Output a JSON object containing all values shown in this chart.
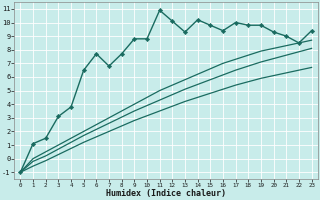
{
  "xlabel": "Humidex (Indice chaleur)",
  "ylabel": "",
  "bg_color": "#c8ecea",
  "grid_color": "#ffffff",
  "line_color": "#1a6b60",
  "xlim": [
    -0.5,
    23.5
  ],
  "ylim": [
    -1.5,
    11.5
  ],
  "xticks": [
    0,
    1,
    2,
    3,
    4,
    5,
    6,
    7,
    8,
    9,
    10,
    11,
    12,
    13,
    14,
    15,
    16,
    17,
    18,
    19,
    20,
    21,
    22,
    23
  ],
  "yticks": [
    -1,
    0,
    1,
    2,
    3,
    4,
    5,
    6,
    7,
    8,
    9,
    10,
    11
  ],
  "series": [
    {
      "x": [
        0,
        1,
        2,
        3,
        4,
        5,
        6,
        7,
        8,
        9,
        10,
        11,
        12,
        13,
        14,
        15,
        16,
        17,
        18,
        19,
        20,
        21,
        22,
        23
      ],
      "y": [
        -1,
        1.1,
        1.5,
        3.1,
        3.8,
        6.5,
        7.7,
        6.8,
        7.7,
        8.8,
        8.8,
        10.9,
        10.1,
        9.3,
        10.2,
        9.8,
        9.4,
        10.0,
        9.8,
        9.8,
        9.3,
        9.0,
        8.5,
        9.4
      ],
      "marker": "D",
      "markersize": 2.2,
      "linewidth": 1.0
    },
    {
      "x": [
        0,
        1,
        2,
        3,
        4,
        5,
        6,
        7,
        8,
        9,
        10,
        11,
        12,
        13,
        14,
        15,
        16,
        17,
        18,
        19,
        20,
        21,
        22,
        23
      ],
      "y": [
        -1,
        0.0,
        0.5,
        1.0,
        1.5,
        2.0,
        2.5,
        3.0,
        3.5,
        4.0,
        4.5,
        5.0,
        5.4,
        5.8,
        6.2,
        6.6,
        7.0,
        7.3,
        7.6,
        7.9,
        8.1,
        8.3,
        8.5,
        8.7
      ],
      "marker": null,
      "markersize": 0,
      "linewidth": 0.9
    },
    {
      "x": [
        0,
        1,
        2,
        3,
        4,
        5,
        6,
        7,
        8,
        9,
        10,
        11,
        12,
        13,
        14,
        15,
        16,
        17,
        18,
        19,
        20,
        21,
        22,
        23
      ],
      "y": [
        -1,
        -0.2,
        0.2,
        0.7,
        1.2,
        1.7,
        2.15,
        2.6,
        3.05,
        3.5,
        3.9,
        4.3,
        4.7,
        5.1,
        5.45,
        5.8,
        6.15,
        6.5,
        6.8,
        7.1,
        7.35,
        7.6,
        7.85,
        8.1
      ],
      "marker": null,
      "markersize": 0,
      "linewidth": 0.9
    },
    {
      "x": [
        0,
        1,
        2,
        3,
        4,
        5,
        6,
        7,
        8,
        9,
        10,
        11,
        12,
        13,
        14,
        15,
        16,
        17,
        18,
        19,
        20,
        21,
        22,
        23
      ],
      "y": [
        -1,
        -0.55,
        -0.15,
        0.3,
        0.75,
        1.2,
        1.6,
        2.0,
        2.4,
        2.8,
        3.15,
        3.5,
        3.85,
        4.2,
        4.5,
        4.8,
        5.1,
        5.4,
        5.65,
        5.9,
        6.1,
        6.3,
        6.5,
        6.7
      ],
      "marker": null,
      "markersize": 0,
      "linewidth": 0.9
    }
  ]
}
